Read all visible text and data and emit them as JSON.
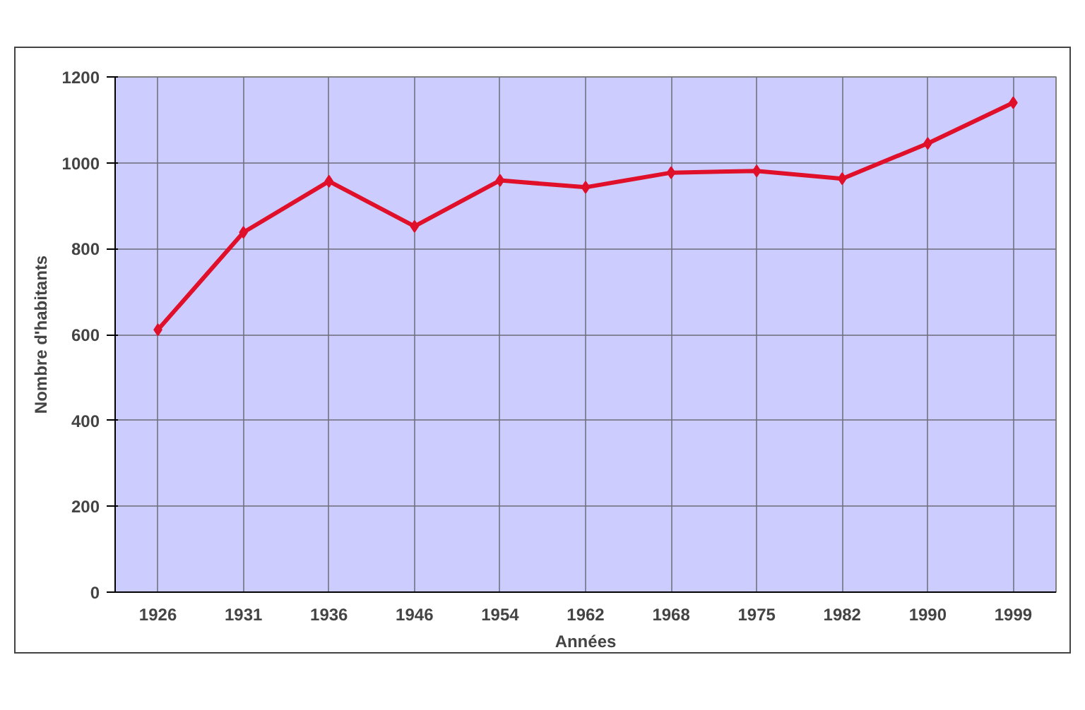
{
  "chart_data": {
    "type": "line",
    "xlabel": "Années",
    "ylabel": "Nombre d'habitants",
    "categories": [
      "1926",
      "1931",
      "1936",
      "1946",
      "1954",
      "1962",
      "1968",
      "1975",
      "1982",
      "1990",
      "1999"
    ],
    "series": [
      {
        "color": "#e0102a",
        "values": [
          611,
          838,
          957,
          852,
          959,
          943,
          977,
          981,
          963,
          1045,
          1140
        ]
      }
    ],
    "ylim": [
      0,
      1200
    ],
    "yticks": [
      0,
      200,
      400,
      600,
      800,
      1000,
      1200
    ],
    "grid": true,
    "marker": "diamond",
    "line_style": "solid"
  }
}
